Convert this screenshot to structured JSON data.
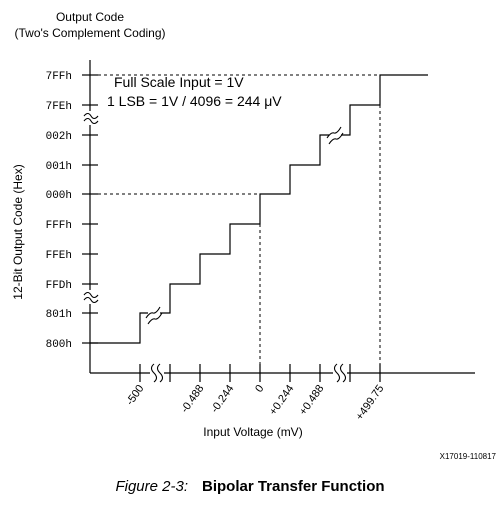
{
  "y_axis": {
    "title_line1": "Output Code",
    "title_line2": "(Two's Complement Coding)",
    "side_label": "12-Bit Output Code (Hex)",
    "codes": [
      "7FFh",
      "7FEh",
      "002h",
      "001h",
      "000h",
      "FFFh",
      "FFEh",
      "FFDh",
      "801h",
      "800h"
    ]
  },
  "x_axis": {
    "label": "Input Voltage (mV)",
    "ticks": [
      "-500",
      "-0.488",
      "-0.244",
      "0",
      "+0.244",
      "+0.488",
      "+499.75"
    ]
  },
  "annotation": {
    "line1": "Full Scale Input = 1V",
    "line2": "1 LSB = 1V / 4096 = 244 μV"
  },
  "figure_id": "X17019-110817",
  "caption": {
    "number": "Figure 2-3:",
    "title": "Bipolar Transfer Function"
  }
}
